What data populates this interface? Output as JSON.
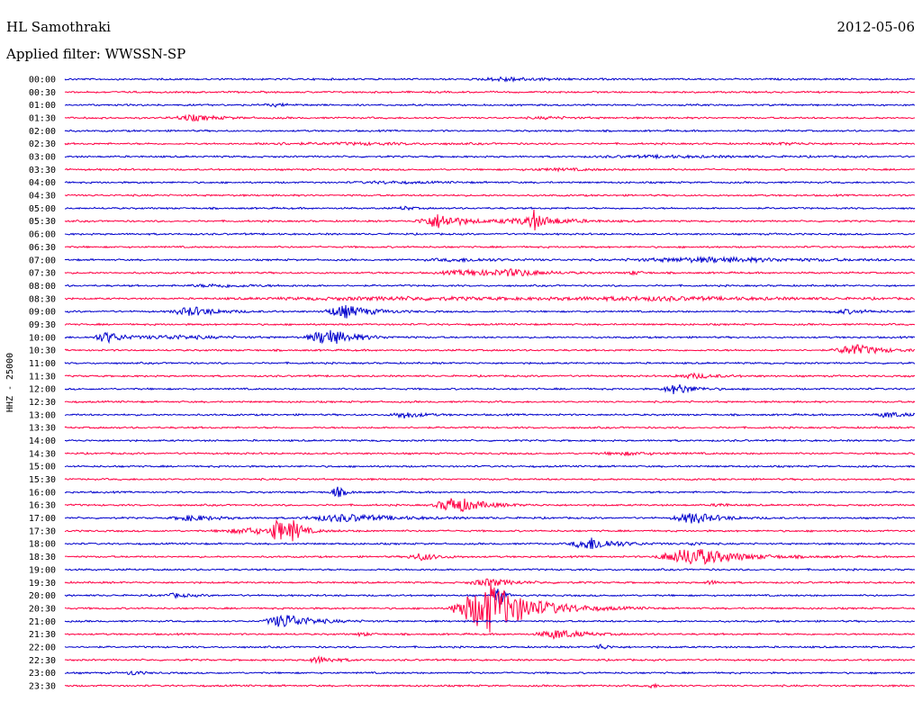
{
  "header": {
    "station": "HL Samothraki",
    "date": "2012-05-06",
    "filter": "Applied filter: WWSSN-SP"
  },
  "chart_data": {
    "type": "line",
    "ylabel": "HHZ - 25000",
    "colors": [
      "#0000cc",
      "#ff0044"
    ],
    "noise_amplitude": 1.2,
    "rows": [
      {
        "time": "00:00",
        "events": [
          [
            0.52,
            0.04,
            2.2
          ]
        ]
      },
      {
        "time": "00:30",
        "events": []
      },
      {
        "time": "01:00",
        "events": [
          [
            0.25,
            0.02,
            1.2
          ]
        ]
      },
      {
        "time": "01:30",
        "events": [
          [
            0.15,
            0.03,
            3.0
          ],
          [
            0.57,
            0.03,
            1.0
          ]
        ]
      },
      {
        "time": "02:00",
        "events": []
      },
      {
        "time": "02:30",
        "events": [
          [
            0.25,
            0.03,
            1.2
          ],
          [
            0.35,
            0.08,
            1.0
          ],
          [
            0.85,
            0.03,
            1.0
          ]
        ]
      },
      {
        "time": "03:00",
        "events": [
          [
            0.7,
            0.1,
            1.0
          ]
        ]
      },
      {
        "time": "03:30",
        "events": [
          [
            0.58,
            0.05,
            1.0
          ]
        ]
      },
      {
        "time": "04:00",
        "events": [
          [
            0.38,
            0.05,
            1.0
          ]
        ]
      },
      {
        "time": "04:30",
        "events": []
      },
      {
        "time": "05:00",
        "events": [
          [
            0.4,
            0.01,
            2.0
          ]
        ]
      },
      {
        "time": "05:30",
        "events": [
          [
            0.44,
            0.03,
            8.0
          ],
          [
            0.54,
            0.04,
            3.0
          ],
          [
            0.55,
            0.005,
            14.0
          ],
          [
            0.57,
            0.03,
            2.5
          ]
        ]
      },
      {
        "time": "06:00",
        "events": []
      },
      {
        "time": "06:30",
        "events": []
      },
      {
        "time": "07:00",
        "events": [
          [
            0.47,
            0.06,
            1.5
          ],
          [
            0.76,
            0.12,
            2.5
          ]
        ]
      },
      {
        "time": "07:30",
        "events": [
          [
            0.48,
            0.05,
            3.0
          ],
          [
            0.53,
            0.03,
            3.0
          ],
          [
            0.67,
            0.01,
            2.0
          ]
        ]
      },
      {
        "time": "08:00",
        "events": [
          [
            0.18,
            0.05,
            1.5
          ]
        ]
      },
      {
        "time": "08:30",
        "events": [
          [
            0.4,
            0.25,
            1.5
          ],
          [
            0.7,
            0.15,
            1.5
          ]
        ]
      },
      {
        "time": "09:00",
        "events": [
          [
            0.15,
            0.03,
            5.0
          ],
          [
            0.33,
            0.03,
            7.0
          ],
          [
            0.92,
            0.03,
            2.0
          ]
        ]
      },
      {
        "time": "09:30",
        "events": []
      },
      {
        "time": "10:00",
        "events": [
          [
            0.05,
            0.02,
            6.0
          ],
          [
            0.13,
            0.05,
            2.0
          ],
          [
            0.31,
            0.03,
            9.0
          ]
        ]
      },
      {
        "time": "10:30",
        "events": [
          [
            0.93,
            0.03,
            6.0
          ]
        ]
      },
      {
        "time": "11:00",
        "events": []
      },
      {
        "time": "11:30",
        "events": [
          [
            0.74,
            0.03,
            2.5
          ]
        ]
      },
      {
        "time": "12:00",
        "events": [
          [
            0.72,
            0.02,
            6.0
          ]
        ]
      },
      {
        "time": "12:30",
        "events": []
      },
      {
        "time": "13:00",
        "events": [
          [
            0.4,
            0.02,
            3.5
          ],
          [
            0.97,
            0.02,
            3.0
          ]
        ]
      },
      {
        "time": "13:30",
        "events": []
      },
      {
        "time": "14:00",
        "events": []
      },
      {
        "time": "14:30",
        "events": [
          [
            0.66,
            0.04,
            1.5
          ]
        ]
      },
      {
        "time": "15:00",
        "events": []
      },
      {
        "time": "15:30",
        "events": []
      },
      {
        "time": "16:00",
        "events": [
          [
            0.32,
            0.01,
            6.0
          ]
        ]
      },
      {
        "time": "16:30",
        "events": [
          [
            0.46,
            0.03,
            9.0
          ],
          [
            0.77,
            0.01,
            2.0
          ]
        ]
      },
      {
        "time": "17:00",
        "events": [
          [
            0.15,
            0.03,
            3.0
          ],
          [
            0.33,
            0.06,
            4.0
          ],
          [
            0.74,
            0.03,
            6.0
          ]
        ]
      },
      {
        "time": "17:30",
        "events": [
          [
            0.22,
            0.05,
            3.0
          ],
          [
            0.25,
            0.01,
            13.0
          ],
          [
            0.27,
            0.01,
            10.0
          ]
        ]
      },
      {
        "time": "18:00",
        "events": [
          [
            0.62,
            0.03,
            7.0
          ],
          [
            0.74,
            0.01,
            2.0
          ]
        ]
      },
      {
        "time": "18:30",
        "events": [
          [
            0.42,
            0.02,
            4.0
          ],
          [
            0.74,
            0.05,
            10.0
          ]
        ]
      },
      {
        "time": "19:00",
        "events": []
      },
      {
        "time": "19:30",
        "events": [
          [
            0.5,
            0.03,
            4.0
          ],
          [
            0.76,
            0.01,
            2.0
          ]
        ]
      },
      {
        "time": "20:00",
        "events": [
          [
            0.13,
            0.02,
            2.0
          ],
          [
            0.51,
            0.005,
            20.0
          ]
        ]
      },
      {
        "time": "20:30",
        "events": [
          [
            0.5,
            0.05,
            28.0
          ]
        ]
      },
      {
        "time": "21:00",
        "events": [
          [
            0.26,
            0.03,
            8.0
          ]
        ]
      },
      {
        "time": "21:30",
        "events": [
          [
            0.35,
            0.01,
            2.0
          ],
          [
            0.58,
            0.03,
            5.0
          ]
        ]
      },
      {
        "time": "22:00",
        "events": [
          [
            0.63,
            0.01,
            3.0
          ]
        ]
      },
      {
        "time": "22:30",
        "events": [
          [
            0.3,
            0.02,
            3.5
          ]
        ]
      },
      {
        "time": "23:00",
        "events": [
          [
            0.08,
            0.01,
            2.5
          ]
        ]
      },
      {
        "time": "23:30",
        "events": [
          [
            0.69,
            0.01,
            2.0
          ]
        ]
      }
    ]
  }
}
